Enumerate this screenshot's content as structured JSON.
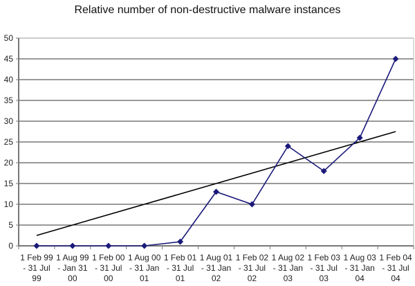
{
  "chart_data": {
    "type": "line",
    "title": "Relative number of non-destructive malware instances",
    "xlabel": "",
    "ylabel": "",
    "ylim": [
      0,
      50
    ],
    "yticks": [
      0,
      5,
      10,
      15,
      20,
      25,
      30,
      35,
      40,
      45,
      50
    ],
    "grid": true,
    "legend": null,
    "categories": [
      [
        "1 Feb 99",
        "- 31 Jul",
        "99"
      ],
      [
        "1 Aug 99",
        "- Jan 31",
        "00"
      ],
      [
        "1 Feb 00",
        "- 31 Jul",
        "00"
      ],
      [
        "1 Aug 00",
        "- 31 Jan",
        "01"
      ],
      [
        "1 Feb 01",
        "- 31 Jul",
        "01"
      ],
      [
        "1 Aug 01",
        "- 31 Jan",
        "02"
      ],
      [
        "1 Feb 02",
        "- 31 Jul",
        "02"
      ],
      [
        "1 Aug 02",
        "- 31 Jan",
        "03"
      ],
      [
        "1 Feb 03",
        "- 31 Jul",
        "03"
      ],
      [
        "1 Aug 03",
        "- 31 Jan",
        "04"
      ],
      [
        "1 Feb 04",
        "- 31 Jul",
        "04"
      ]
    ],
    "series": [
      {
        "name": "Non-destructive malware instances",
        "values": [
          0,
          0,
          0,
          0,
          1,
          13,
          10,
          24,
          18,
          26,
          45
        ],
        "color": "#1a1a7a",
        "marker": "diamond"
      },
      {
        "name": "Linear trend",
        "values_start_end": [
          2.5,
          27.5
        ],
        "color": "#000000",
        "marker": "none"
      }
    ]
  }
}
